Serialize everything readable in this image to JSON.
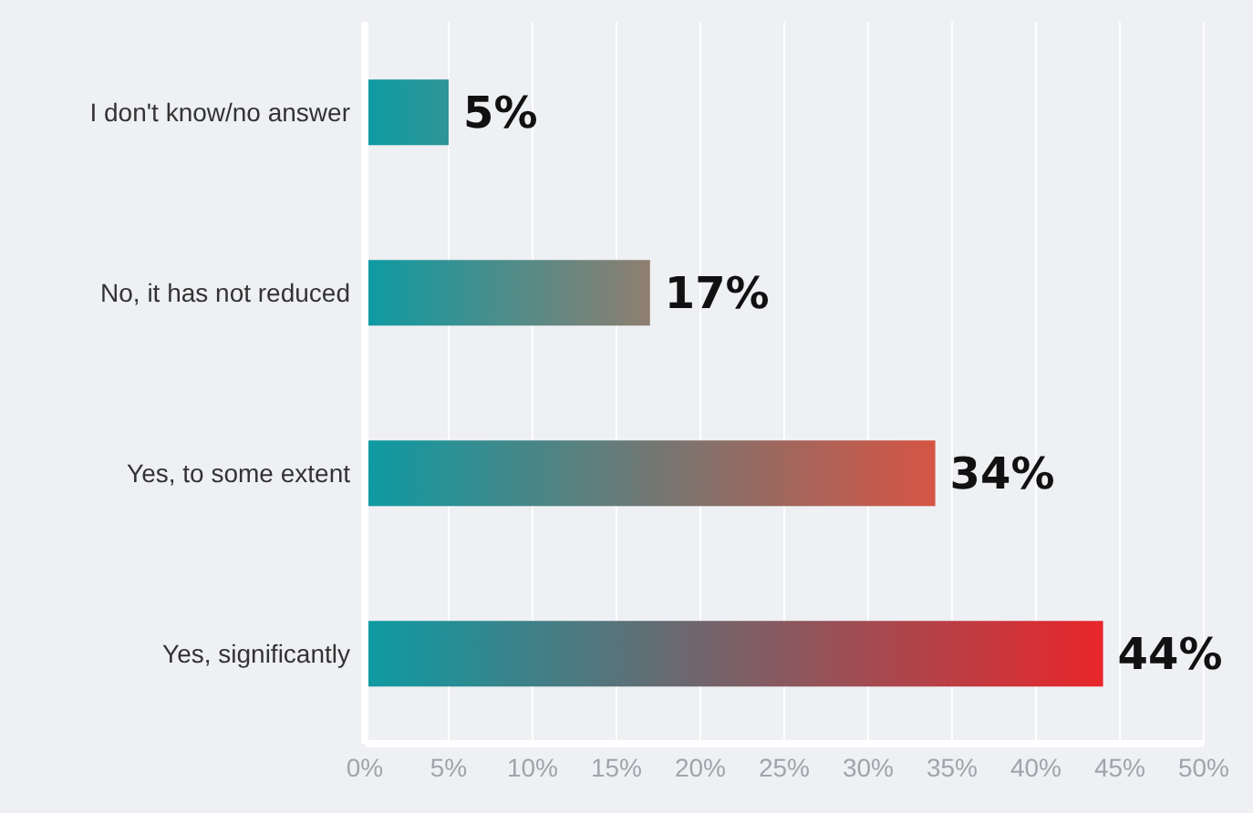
{
  "chart_data": {
    "type": "bar",
    "orientation": "horizontal",
    "categories": [
      "I don't know/no answer",
      "No, it has not reduced",
      "Yes, to some extent",
      "Yes, significantly"
    ],
    "values": [
      5,
      17,
      34,
      44
    ],
    "colors": [
      "#2e9596",
      "#8f7e70",
      "#d65444",
      "#e8262b"
    ],
    "value_labels": [
      "5%",
      "17%",
      "34%",
      "44%"
    ],
    "xlim": [
      0,
      50
    ],
    "xticks": [
      {
        "value": 0,
        "label": "0%"
      },
      {
        "value": 5,
        "label": "5%"
      },
      {
        "value": 10,
        "label": "10%"
      },
      {
        "value": 15,
        "label": "15%"
      },
      {
        "value": 20,
        "label": "20%"
      },
      {
        "value": 25,
        "label": "25%"
      },
      {
        "value": 30,
        "label": "30%"
      },
      {
        "value": 35,
        "label": "35%"
      },
      {
        "value": 40,
        "label": "40%"
      },
      {
        "value": 45,
        "label": "45%"
      },
      {
        "value": 50,
        "label": "50%"
      }
    ],
    "grid": "x"
  }
}
